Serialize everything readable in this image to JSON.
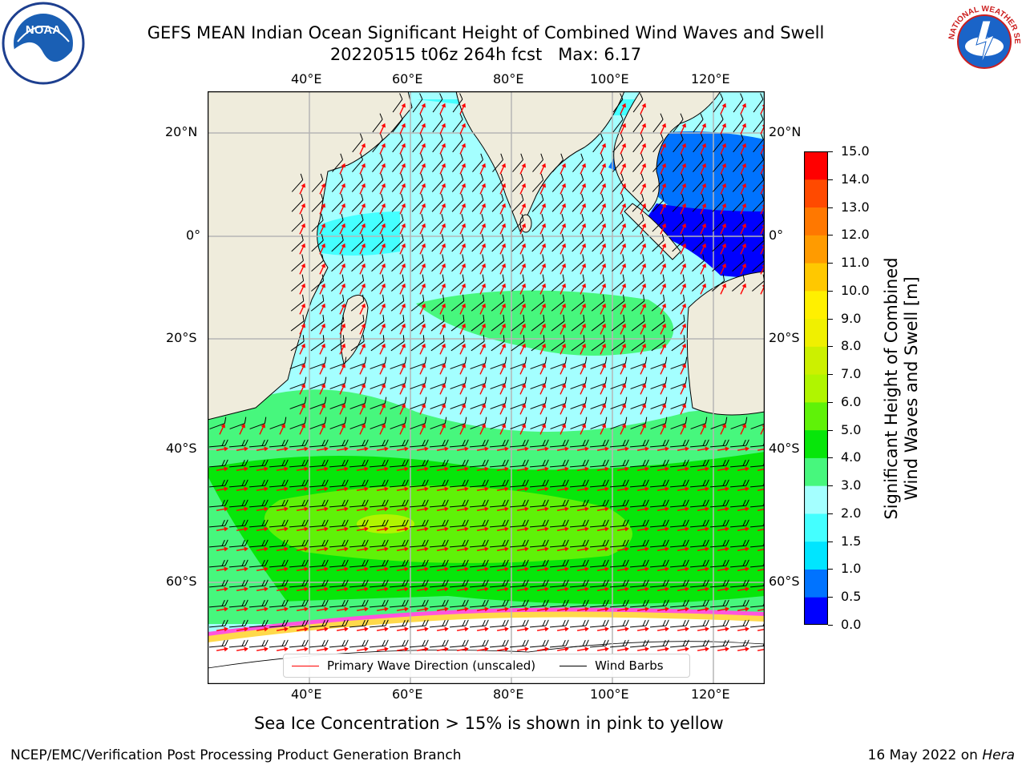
{
  "header": {
    "title_line1": "GEFS MEAN Indian Ocean Significant Height of Combined Wind Waves and Swell",
    "title_line2": "20220515 t06z 264h fcst   Max: 6.17",
    "noara_logo_text": "NOAA",
    "nws_logo_text": "NATIONAL WEATHER SERVICE"
  },
  "map": {
    "top_lon_labels": [
      "40°E",
      "60°E",
      "80°E",
      "100°E",
      "120°E"
    ],
    "bottom_lon_labels": [
      "40°E",
      "60°E",
      "80°E",
      "100°E",
      "120°E"
    ],
    "left_lat_labels": [
      "20°N",
      "0°",
      "20°S",
      "40°S",
      "60°S"
    ],
    "right_lat_labels": [
      "20°N",
      "0°",
      "20°S",
      "40°S",
      "60°S"
    ],
    "land_color": "#efecdc",
    "ice_color": "#ffffff",
    "wave_arrow_color": "#ff0000",
    "wind_barb_color": "#000000"
  },
  "legend": {
    "primary_wave": "Primary Wave Direction (unscaled)",
    "wind_barbs": "Wind Barbs"
  },
  "colorbar": {
    "label_line1": "Significant Height of Combined",
    "label_line2": "Wind Waves and Swell [m]",
    "ticks": [
      "0.0",
      "0.5",
      "1.0",
      "1.5",
      "2.0",
      "3.0",
      "4.0",
      "5.0",
      "6.0",
      "7.0",
      "8.0",
      "9.0",
      "10.0",
      "11.0",
      "12.0",
      "13.0",
      "14.0",
      "15.0"
    ],
    "colors": [
      "#0000ff",
      "#0073ff",
      "#00e5ff",
      "#44ffff",
      "#a4ffff",
      "#47f77d",
      "#07e60a",
      "#5ff208",
      "#b0f500",
      "#ccf000",
      "#f0f000",
      "#fff000",
      "#ffc800",
      "#ff9b00",
      "#ff7800",
      "#ff4a00",
      "#ff0000"
    ]
  },
  "caption": "Sea Ice Concentration > 15% is shown in pink to yellow",
  "footer": {
    "left": "NCEP/EMC/Verification Post Processing Product Generation Branch",
    "right_date": "16 May 2022 on ",
    "right_host": "Hera"
  }
}
